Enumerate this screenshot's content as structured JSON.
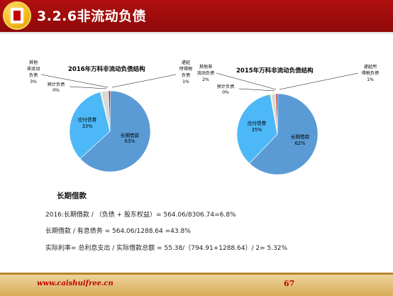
{
  "slide": {
    "title": "3.2.6非流动负债",
    "subheading": "长期借款",
    "lines": [
      "2016:长期借款 / （负债 + 股东权益）= 564.06/8306.74=6.8%",
      "长期借款 / 有息债务 = 564.06/1288.64 =43.8%",
      "实际利率= 总利息支出 / 实际借款总额 = 55.38/（794.91+1288.64）/ 2= 5.32%"
    ],
    "footer_url": "www.caishuifree.cn",
    "page_number": "67"
  },
  "colors": {
    "header": "#a00c0c",
    "long_term_loan": "#5b9bd5",
    "payables": "#4db8f7",
    "estimated": "#ffff00",
    "other": "#d9d9d9",
    "deferred_tax": "#c00000"
  },
  "chart_data": [
    {
      "type": "pie",
      "title": "2016年万科非流动负债结构",
      "slices": [
        {
          "name": "长期借款",
          "value": 63,
          "label": "63%",
          "color": "#5b9bd5"
        },
        {
          "name": "应付债券",
          "value": 33,
          "label": "33%",
          "color": "#4db8f7"
        },
        {
          "name": "预计负债",
          "value": 0,
          "label": "0%",
          "color": "#ffff00"
        },
        {
          "name": "其他非流动负债",
          "value": 3,
          "label": "3%",
          "color": "#d9d9d9"
        },
        {
          "name": "递延所得税负债",
          "value": 1,
          "label": "1%",
          "color": "#c00000"
        }
      ],
      "label_lines": {
        "other": [
          "其他",
          "非流动",
          "负债"
        ],
        "estimated": [
          "预计负债"
        ],
        "deferred": [
          "递延",
          "所得税",
          "负债"
        ]
      }
    },
    {
      "type": "pie",
      "title": "2015年万科非流动负债结构",
      "slices": [
        {
          "name": "长期借款",
          "value": 62,
          "label": "62%",
          "color": "#5b9bd5"
        },
        {
          "name": "应付债券",
          "value": 35,
          "label": "35%",
          "color": "#4db8f7"
        },
        {
          "name": "预计负债",
          "value": 0,
          "label": "0%",
          "color": "#ffff00"
        },
        {
          "name": "其他非流动负债",
          "value": 2,
          "label": "2%",
          "color": "#d9d9d9"
        },
        {
          "name": "递延所得税负债",
          "value": 1,
          "label": "1%",
          "color": "#c00000"
        }
      ],
      "label_lines": {
        "other": [
          "其他非",
          "流动负债"
        ],
        "estimated": [
          "预计负债"
        ],
        "deferred": [
          "递延所",
          "得税负债"
        ]
      }
    }
  ]
}
